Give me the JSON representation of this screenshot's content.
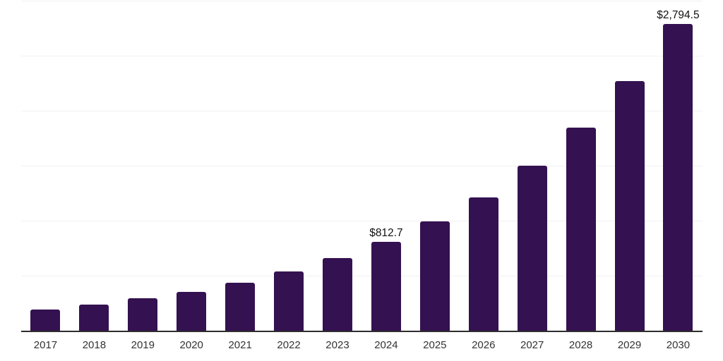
{
  "chart_data": {
    "type": "bar",
    "title": "",
    "xlabel": "",
    "ylabel": "",
    "categories": [
      "2017",
      "2018",
      "2019",
      "2020",
      "2021",
      "2022",
      "2023",
      "2024",
      "2025",
      "2026",
      "2027",
      "2028",
      "2029",
      "2030"
    ],
    "values": [
      201,
      242,
      299,
      361,
      445,
      547,
      665,
      812.7,
      998.5,
      1221,
      1506,
      1851,
      2275,
      2794.5
    ],
    "data_labels": [
      "",
      "",
      "",
      "",
      "",
      "",
      "",
      "$812.7",
      "",
      "",
      "",
      "",
      "",
      "$2,794.5"
    ],
    "ylim": [
      0,
      3000
    ],
    "gridline_step": 500,
    "grid": "horizontal-only",
    "legend": "none",
    "bar_color": "#341150",
    "gridline_color": "#f1f1f1",
    "axis_line_color": "#2d2d2d",
    "tick_label_color": "#333333",
    "value_label_color": "#111111"
  }
}
